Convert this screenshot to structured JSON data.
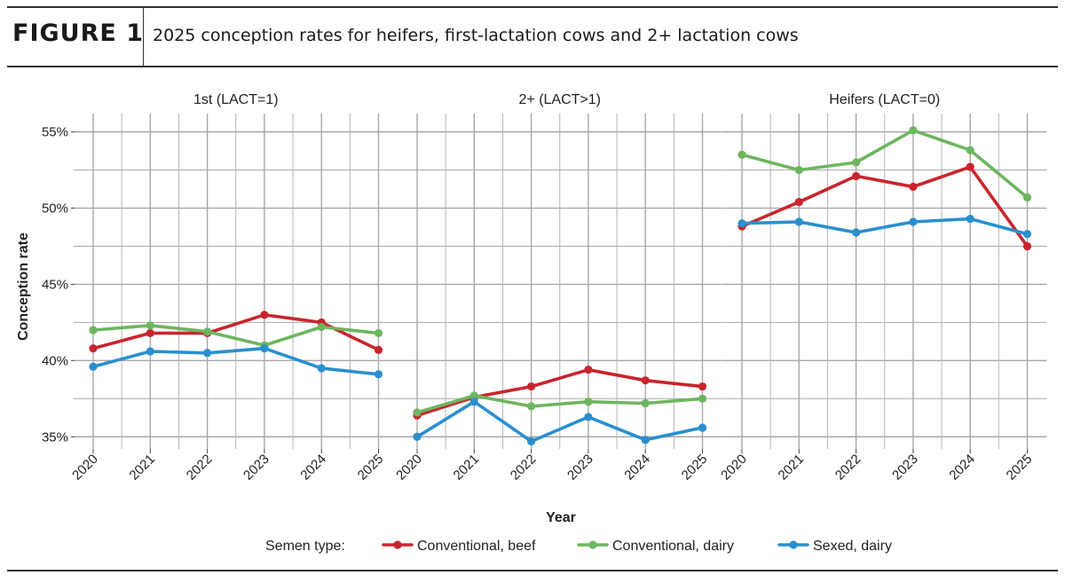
{
  "figure": {
    "label": "FIGURE 1",
    "title": "2025 conception rates for heifers, first-lactation cows and 2+ lactation cows"
  },
  "chart_data": {
    "type": "line",
    "xlabel": "Year",
    "ylabel": "Conception rate",
    "y_ticks": [
      "55%",
      "50%",
      "45%",
      "40%",
      "35%"
    ],
    "ylim": [
      34.2,
      56.2
    ],
    "x": [
      "2020",
      "2021",
      "2022",
      "2023",
      "2024",
      "2025"
    ],
    "legend": {
      "title": "Semen type:",
      "placement": "bottom"
    },
    "grid": true,
    "series": [
      {
        "name": "Conventional, beef",
        "color": "#c8252d"
      },
      {
        "name": "Conventional, dairy",
        "color": "#6db55f"
      },
      {
        "name": "Sexed, dairy",
        "color": "#2a8fcf"
      }
    ],
    "facets": [
      {
        "title": "1st (LACT=1)",
        "values": {
          "Conventional, beef": [
            40.8,
            41.8,
            41.8,
            43.0,
            42.5,
            40.7
          ],
          "Conventional, dairy": [
            42.0,
            42.3,
            41.9,
            41.0,
            42.2,
            41.8
          ],
          "Sexed, dairy": [
            39.6,
            40.6,
            40.5,
            40.8,
            39.5,
            39.1
          ]
        }
      },
      {
        "title": "2+ (LACT>1)",
        "values": {
          "Conventional, beef": [
            36.4,
            37.6,
            38.3,
            39.4,
            38.7,
            38.3
          ],
          "Conventional, dairy": [
            36.6,
            37.7,
            37.0,
            37.3,
            37.2,
            37.5
          ],
          "Sexed, dairy": [
            35.0,
            37.3,
            34.7,
            36.3,
            34.8,
            35.6
          ]
        }
      },
      {
        "title": "Heifers (LACT=0)",
        "values": {
          "Conventional, beef": [
            48.8,
            50.4,
            52.1,
            51.4,
            52.7,
            47.5
          ],
          "Conventional, dairy": [
            53.5,
            52.5,
            53.0,
            55.1,
            53.8,
            50.7
          ],
          "Sexed, dairy": [
            49.0,
            49.1,
            48.4,
            49.1,
            49.3,
            48.3
          ]
        }
      }
    ]
  }
}
